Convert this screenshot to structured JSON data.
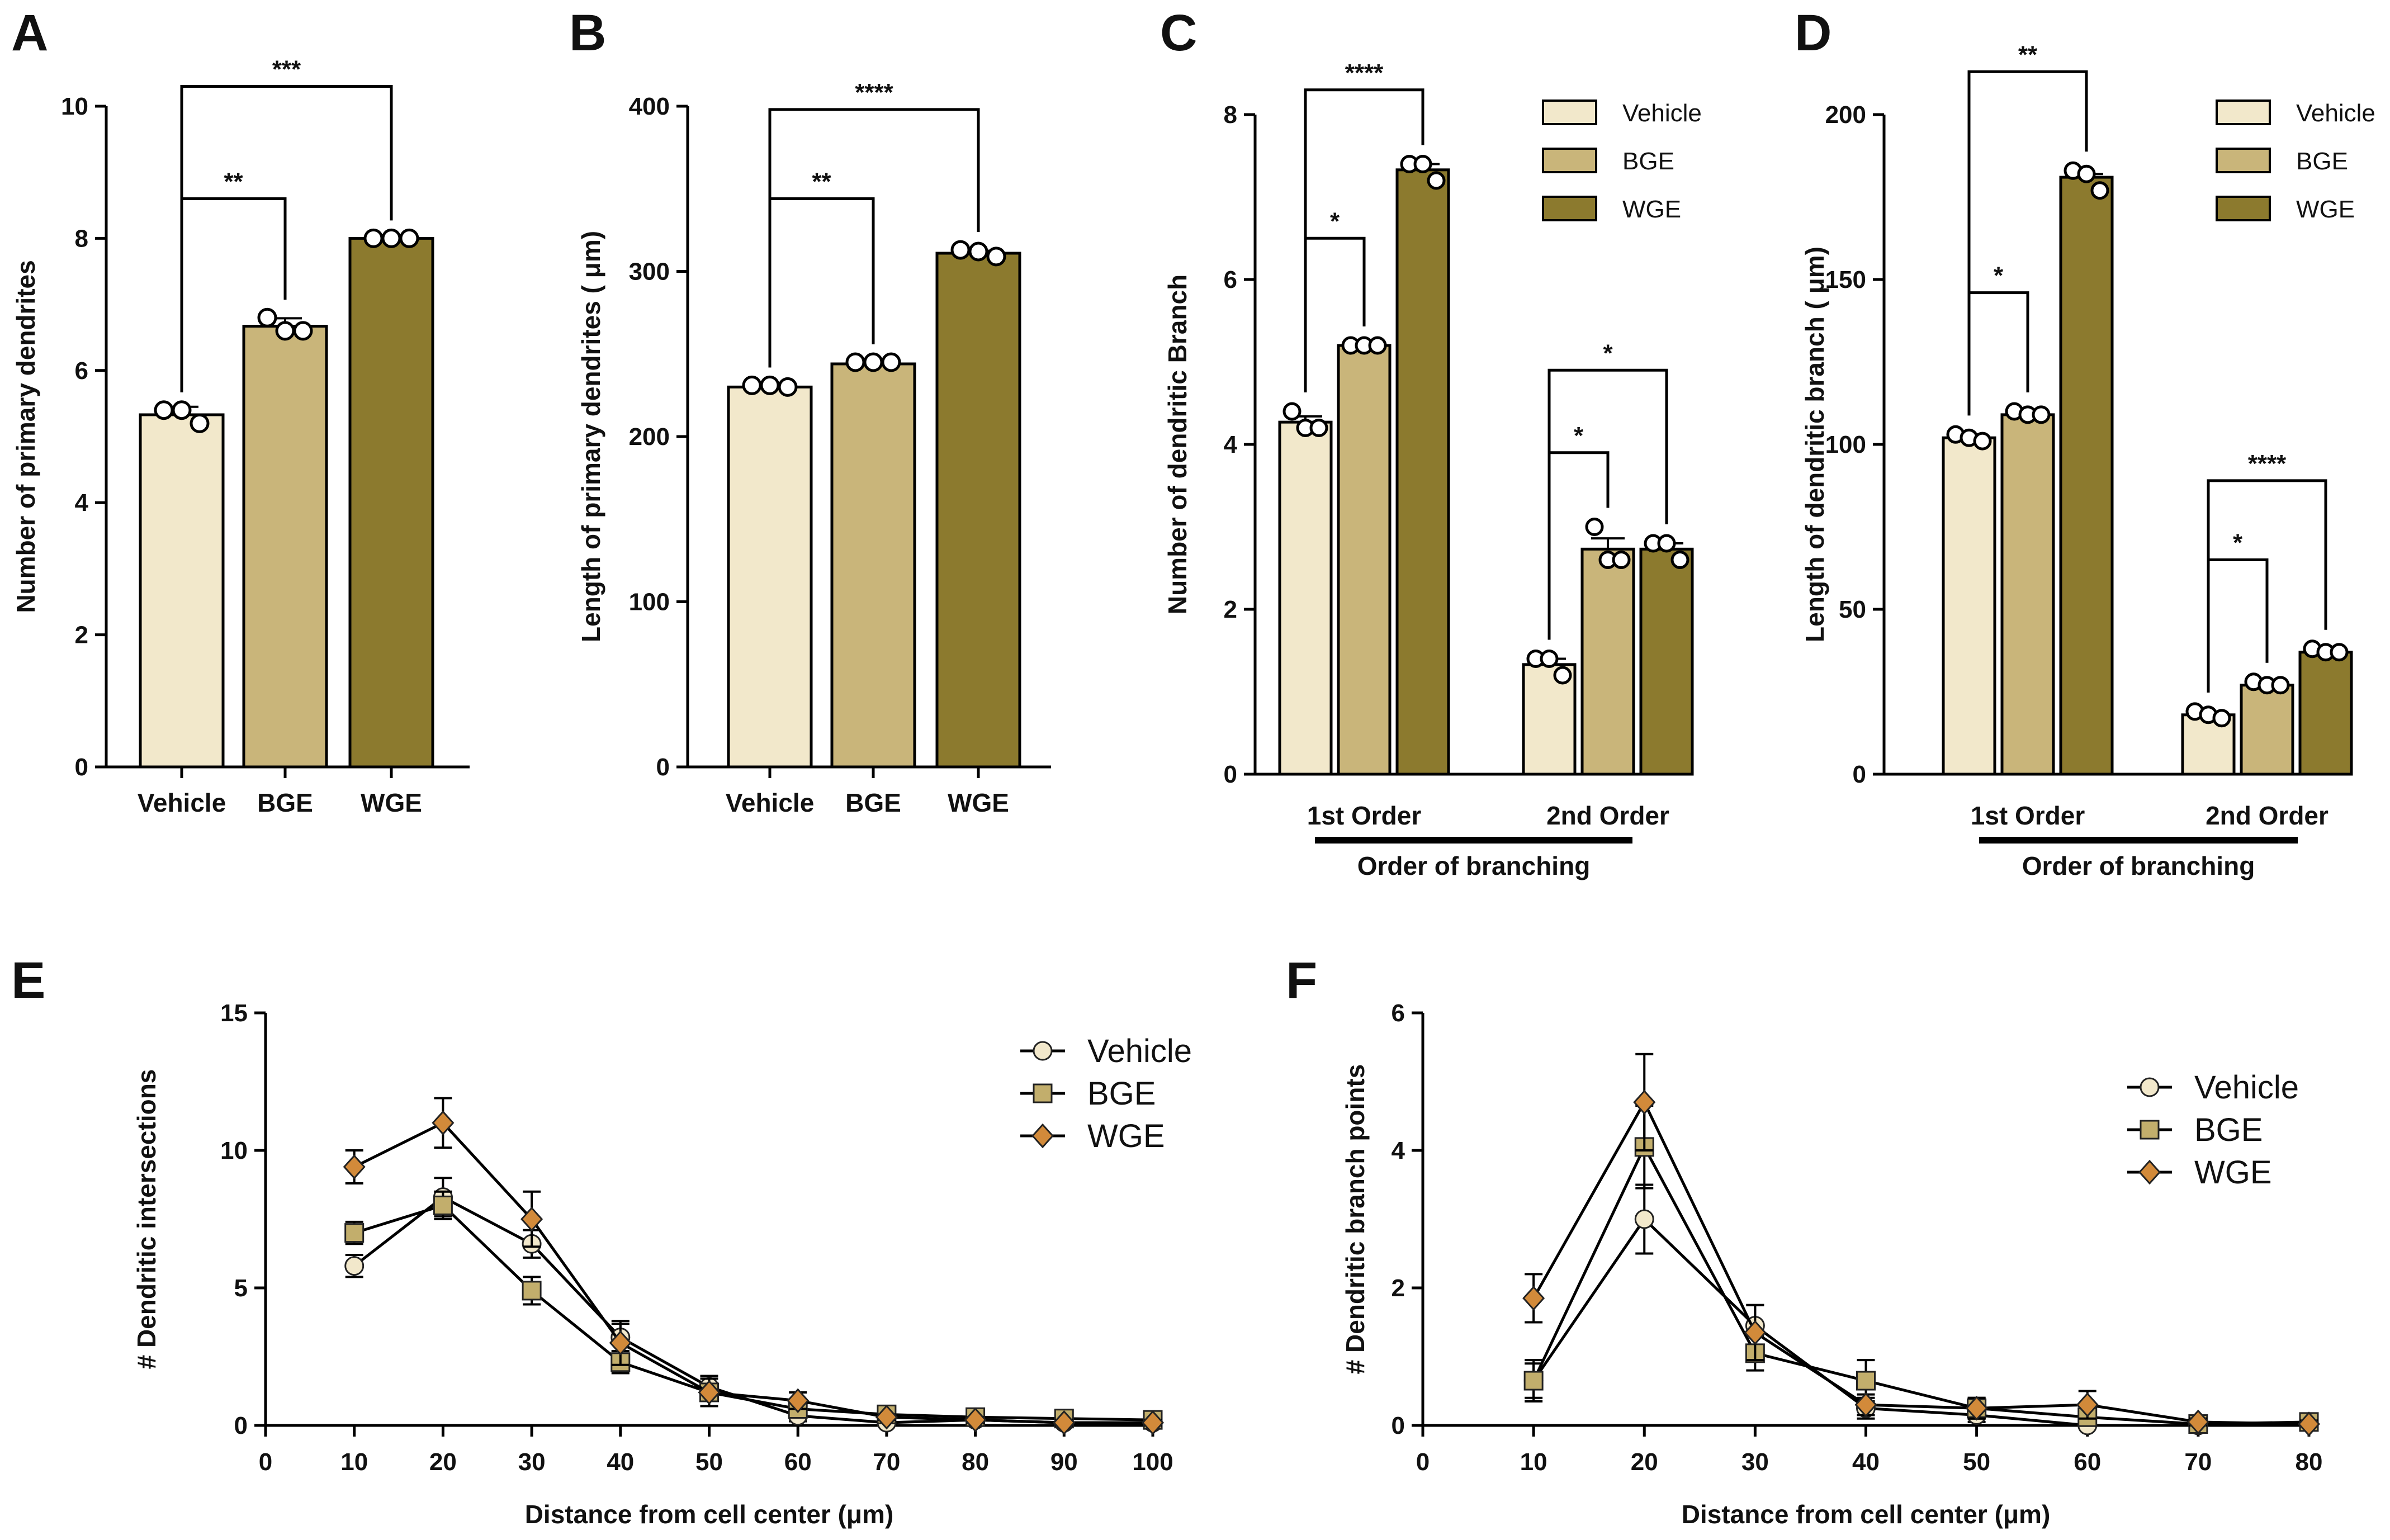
{
  "colors": {
    "Vehicle": "#F2E8CB",
    "BGE": "#C9B57A",
    "WGE": "#8C7A2E",
    "Vehicle_line_marker": "#F2E8CB",
    "BGE_line_marker": "#C2AE6C",
    "WGE_line_marker": "#D28A3A"
  },
  "chart_data": [
    {
      "id": "A",
      "panel_letter": "A",
      "type": "bar",
      "categories": [
        "Vehicle",
        "BGE",
        "WGE"
      ],
      "values": [
        5.33,
        6.67,
        8.0
      ],
      "sem": [
        0.12,
        0.12,
        0.0
      ],
      "points": [
        [
          5.4,
          5.4,
          5.2
        ],
        [
          6.8,
          6.6,
          6.6
        ],
        [
          8.0,
          8.0,
          8.0
        ]
      ],
      "ylabel": "Number of primary dendrites",
      "xlabel": "",
      "ylim": [
        0,
        10
      ],
      "yticks": [
        0,
        2,
        4,
        6,
        8,
        10
      ],
      "significance": [
        {
          "from": 0,
          "to": 1,
          "label": "**",
          "y": 8.6
        },
        {
          "from": 0,
          "to": 2,
          "label": "***",
          "y": 10.3
        }
      ]
    },
    {
      "id": "B",
      "panel_letter": "B",
      "type": "bar",
      "categories": [
        "Vehicle",
        "BGE",
        "WGE"
      ],
      "values": [
        230,
        244,
        311
      ],
      "sem": [
        1.5,
        1.0,
        1.5
      ],
      "points": [
        [
          231,
          231,
          230
        ],
        [
          245,
          245,
          245
        ],
        [
          313,
          312,
          309
        ]
      ],
      "ylabel": "Length of primary dendrites ( μm)",
      "xlabel": "",
      "ylim": [
        0,
        400
      ],
      "yticks": [
        0,
        100,
        200,
        300,
        400
      ],
      "significance": [
        {
          "from": 0,
          "to": 1,
          "label": "**",
          "y": 344
        },
        {
          "from": 0,
          "to": 2,
          "label": "****",
          "y": 398
        }
      ]
    },
    {
      "id": "C",
      "panel_letter": "C",
      "type": "grouped-bar",
      "groups": [
        "1st Order",
        "2nd Order"
      ],
      "group_title": "Order of branching",
      "legend": [
        "Vehicle",
        "BGE",
        "WGE"
      ],
      "series": [
        {
          "name": "Vehicle",
          "values": [
            4.27,
            1.33
          ],
          "sem": [
            0.07,
            0.07
          ],
          "points": [
            [
              4.4,
              4.2,
              4.2
            ],
            [
              1.4,
              1.4,
              1.2
            ]
          ]
        },
        {
          "name": "BGE",
          "values": [
            5.2,
            2.73
          ],
          "sem": [
            0.0,
            0.13
          ],
          "points": [
            [
              5.2,
              5.2,
              5.2
            ],
            [
              3.0,
              2.6,
              2.6
            ]
          ]
        },
        {
          "name": "WGE",
          "values": [
            7.33,
            2.73
          ],
          "sem": [
            0.07,
            0.07
          ],
          "points": [
            [
              7.4,
              7.4,
              7.2
            ],
            [
              2.8,
              2.8,
              2.6
            ]
          ]
        }
      ],
      "ylabel": "Number of dendritic Branch",
      "ylim": [
        0,
        8
      ],
      "yticks": [
        0,
        2,
        4,
        6,
        8
      ],
      "significance": [
        {
          "group": 0,
          "from": 0,
          "to": 1,
          "label": "*",
          "y": 6.5
        },
        {
          "group": 0,
          "from": 0,
          "to": 2,
          "label": "****",
          "y": 8.3
        },
        {
          "group": 1,
          "from": 0,
          "to": 1,
          "label": "*",
          "y": 3.9
        },
        {
          "group": 1,
          "from": 0,
          "to": 2,
          "label": "*",
          "y": 4.9
        }
      ]
    },
    {
      "id": "D",
      "panel_letter": "D",
      "type": "grouped-bar",
      "groups": [
        "1st Order",
        "2nd Order"
      ],
      "group_title": "Order of branching",
      "legend": [
        "Vehicle",
        "BGE",
        "WGE"
      ],
      "series": [
        {
          "name": "Vehicle",
          "values": [
            102,
            18
          ],
          "sem": [
            1.0,
            1.0
          ],
          "points": [
            [
              103,
              102,
              101
            ],
            [
              19,
              18,
              17
            ]
          ]
        },
        {
          "name": "BGE",
          "values": [
            109,
            27
          ],
          "sem": [
            0.5,
            0.5
          ],
          "points": [
            [
              110,
              109,
              109
            ],
            [
              28,
              27,
              27
            ]
          ]
        },
        {
          "name": "WGE",
          "values": [
            181,
            37
          ],
          "sem": [
            1.0,
            1.0
          ],
          "points": [
            [
              183,
              182,
              177
            ],
            [
              38,
              37,
              37
            ]
          ]
        }
      ],
      "ylabel": "Length of dendritic branch ( μm)",
      "ylim": [
        0,
        200
      ],
      "yticks": [
        0,
        50,
        100,
        150,
        200
      ],
      "significance": [
        {
          "group": 0,
          "from": 0,
          "to": 1,
          "label": "*",
          "y": 146
        },
        {
          "group": 0,
          "from": 0,
          "to": 2,
          "label": "**",
          "y": 213
        },
        {
          "group": 1,
          "from": 0,
          "to": 1,
          "label": "*",
          "y": 65
        },
        {
          "group": 1,
          "from": 0,
          "to": 2,
          "label": "****",
          "y": 89
        }
      ]
    },
    {
      "id": "E",
      "panel_letter": "E",
      "type": "line",
      "x": [
        10,
        20,
        30,
        40,
        50,
        60,
        70,
        80,
        90,
        100
      ],
      "series": [
        {
          "name": "Vehicle",
          "marker": "circle",
          "values": [
            5.8,
            8.3,
            6.6,
            3.2,
            1.4,
            0.35,
            0.1,
            0.2,
            0.1,
            0.1
          ],
          "err": [
            0.4,
            0.7,
            0.5,
            0.5,
            0.4,
            0.2,
            0.1,
            0.1,
            0.1,
            0.1
          ]
        },
        {
          "name": "BGE",
          "marker": "square",
          "values": [
            7.0,
            8.0,
            4.9,
            2.3,
            1.2,
            0.6,
            0.4,
            0.3,
            0.25,
            0.2
          ],
          "err": [
            0.4,
            0.5,
            0.5,
            0.4,
            0.3,
            0.3,
            0.1,
            0.1,
            0.1,
            0.1
          ]
        },
        {
          "name": "WGE",
          "marker": "diamond",
          "values": [
            9.4,
            11.0,
            7.5,
            3.0,
            1.2,
            0.9,
            0.3,
            0.2,
            0.1,
            0.1
          ],
          "err": [
            0.6,
            0.9,
            1.0,
            0.8,
            0.5,
            0.3,
            0.1,
            0.1,
            0.1,
            0.1
          ]
        }
      ],
      "xlabel": "Distance from cell center (μm)",
      "ylabel": "# Dendritic intersections",
      "xlim": [
        0,
        100
      ],
      "xticks": [
        0,
        10,
        20,
        30,
        40,
        50,
        60,
        70,
        80,
        90,
        100
      ],
      "ylim": [
        0,
        15
      ],
      "yticks": [
        0,
        5,
        10,
        15
      ],
      "legend": [
        "Vehicle",
        "BGE",
        "WGE"
      ]
    },
    {
      "id": "F",
      "panel_letter": "F",
      "type": "line",
      "x": [
        10,
        20,
        30,
        40,
        50,
        60,
        70,
        80
      ],
      "series": [
        {
          "name": "Vehicle",
          "marker": "circle",
          "values": [
            0.65,
            3.0,
            1.45,
            0.25,
            0.15,
            0.0,
            0.0,
            0.05
          ],
          "err": [
            0.25,
            0.5,
            0.3,
            0.15,
            0.1,
            0.05,
            0.05,
            0.05
          ]
        },
        {
          "name": "BGE",
          "marker": "square",
          "values": [
            0.65,
            4.05,
            1.05,
            0.65,
            0.25,
            0.12,
            0.02,
            0.05
          ],
          "err": [
            0.3,
            0.6,
            0.25,
            0.3,
            0.15,
            0.1,
            0.05,
            0.05
          ]
        },
        {
          "name": "WGE",
          "marker": "diamond",
          "values": [
            1.85,
            4.7,
            1.35,
            0.3,
            0.25,
            0.3,
            0.05,
            0.02
          ],
          "err": [
            0.35,
            0.7,
            0.4,
            0.15,
            0.15,
            0.2,
            0.05,
            0.05
          ]
        }
      ],
      "xlabel": "Distance from cell center (μm)",
      "ylabel": "# Dendritic branch points",
      "xlim": [
        0,
        80
      ],
      "xticks": [
        0,
        10,
        20,
        30,
        40,
        50,
        60,
        70,
        80
      ],
      "ylim": [
        0,
        6
      ],
      "yticks": [
        0,
        2,
        4,
        6
      ],
      "legend": [
        "Vehicle",
        "BGE",
        "WGE"
      ]
    }
  ]
}
